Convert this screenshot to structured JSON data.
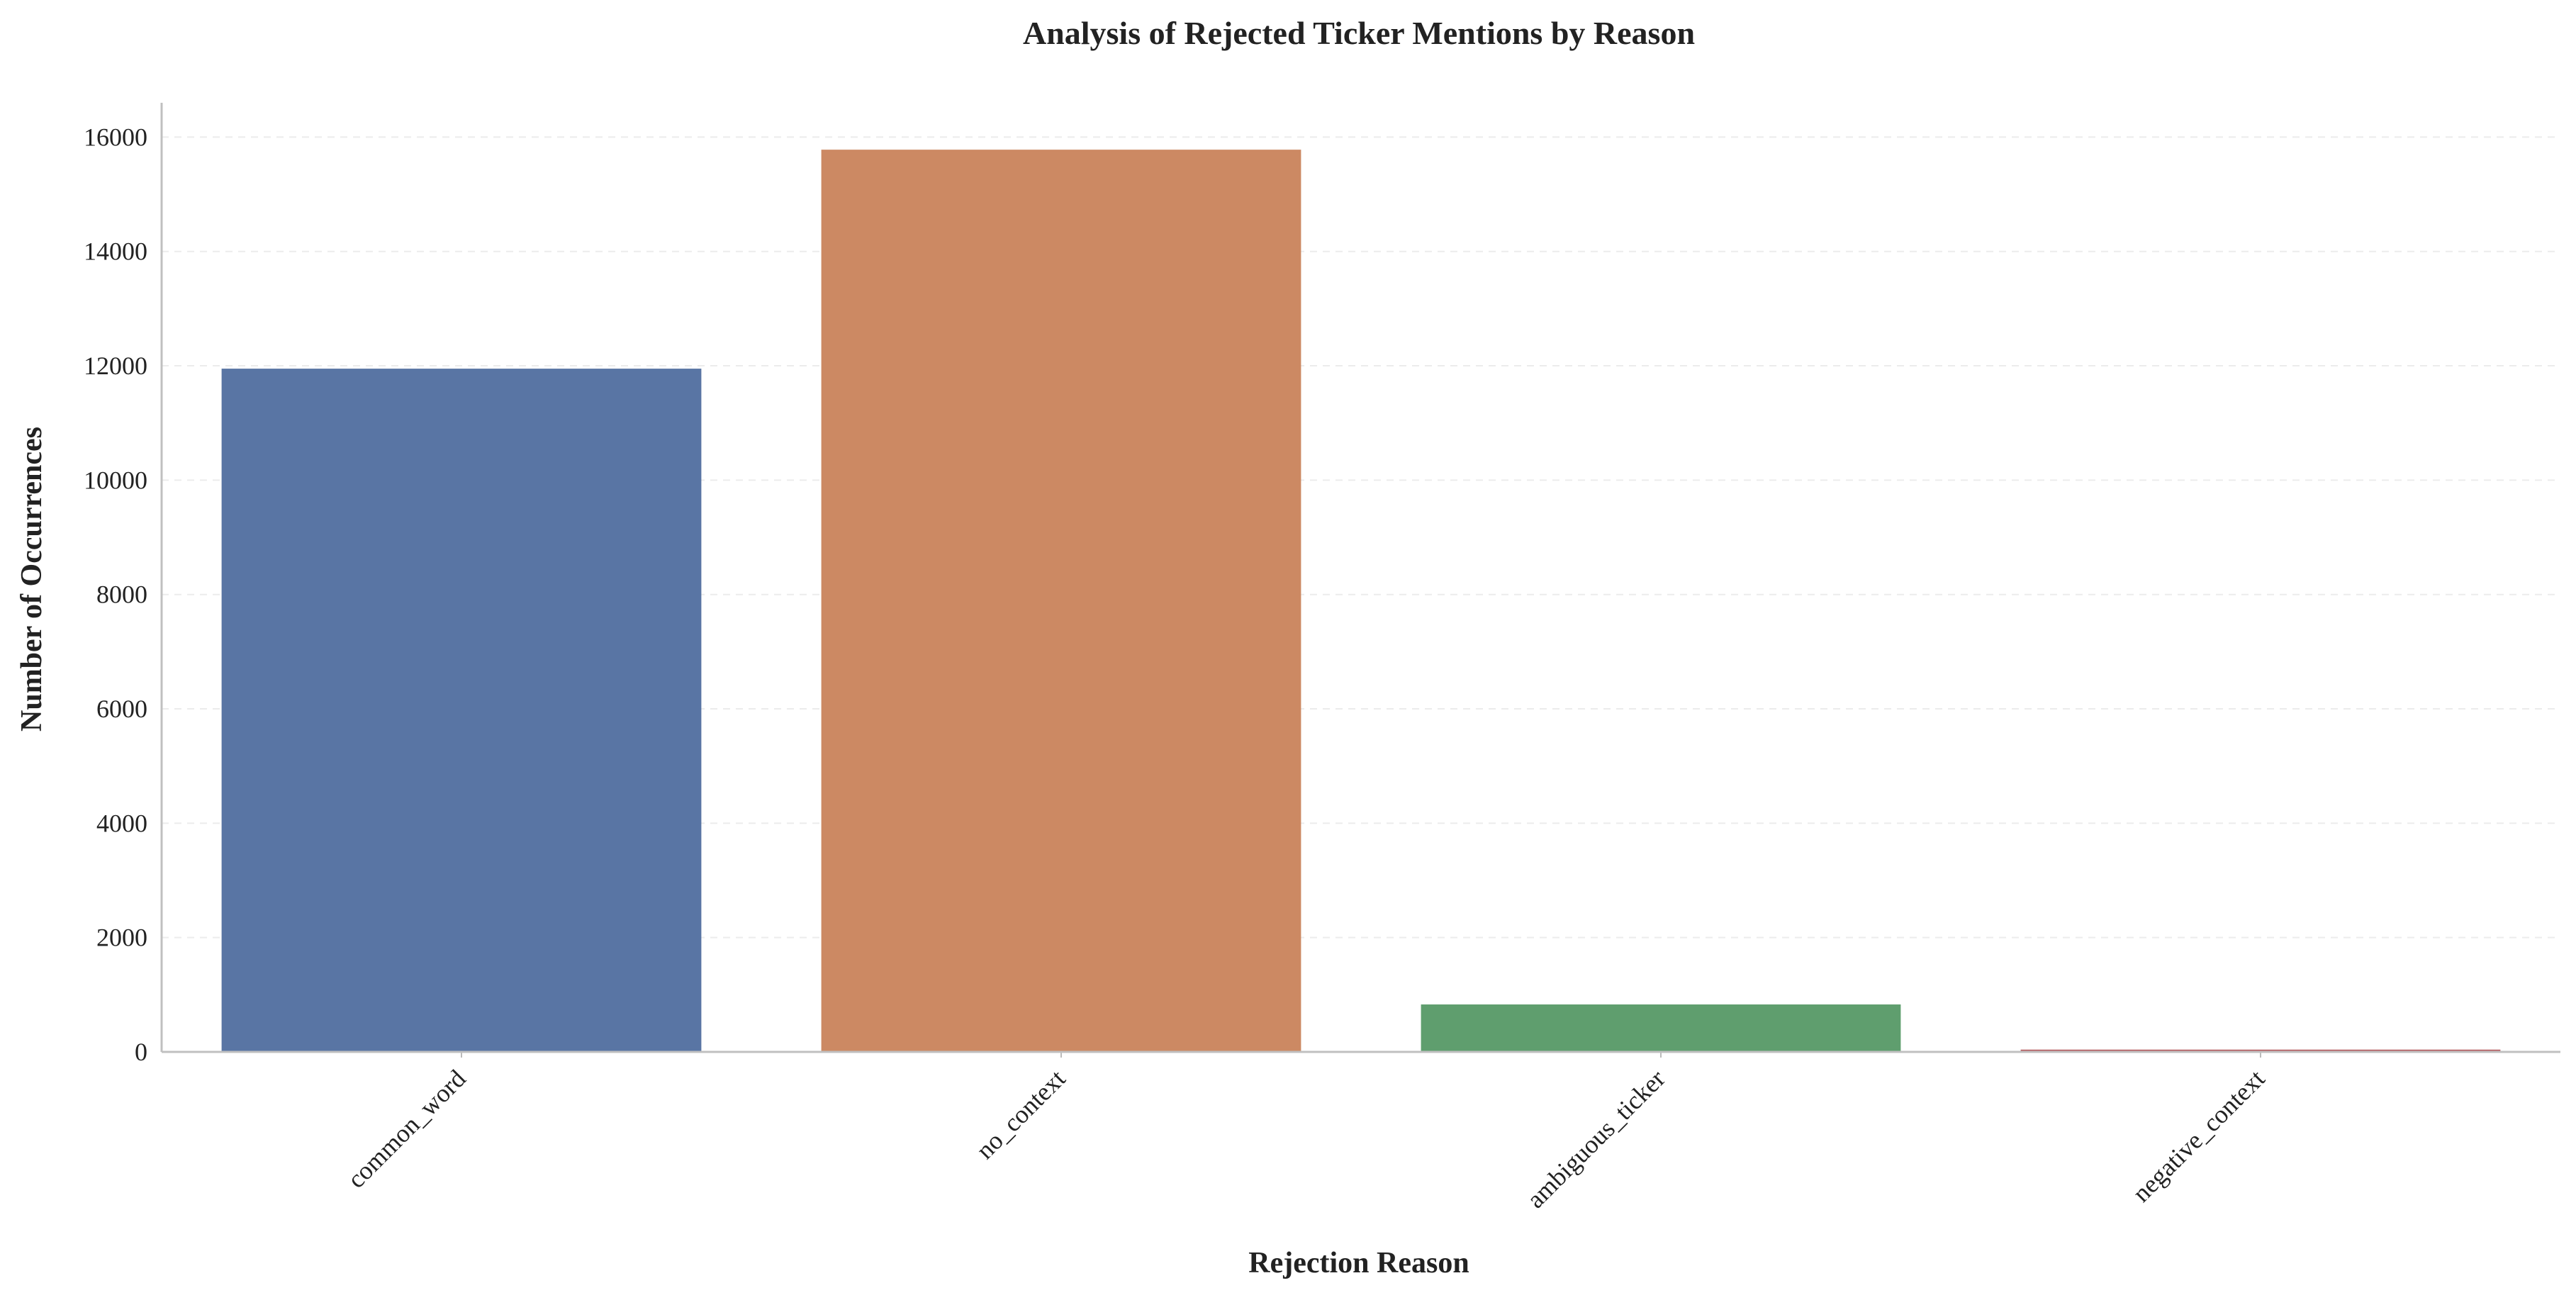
{
  "chart_data": {
    "type": "bar",
    "title": "Analysis of Rejected Ticker Mentions by Reason",
    "xlabel": "Rejection Reason",
    "ylabel": "Number of Occurrences",
    "categories": [
      "common_word",
      "no_context",
      "ambiguous_ticker",
      "negative_context"
    ],
    "values": [
      11950,
      15780,
      830,
      40
    ],
    "bar_colors": [
      "#5975a4",
      "#cc8963",
      "#5f9e6e",
      "#b55d60"
    ],
    "ylim": [
      0,
      16600
    ],
    "yticks": [
      0,
      2000,
      4000,
      6000,
      8000,
      10000,
      12000,
      14000,
      16000
    ],
    "grid": true,
    "legend": "none"
  }
}
